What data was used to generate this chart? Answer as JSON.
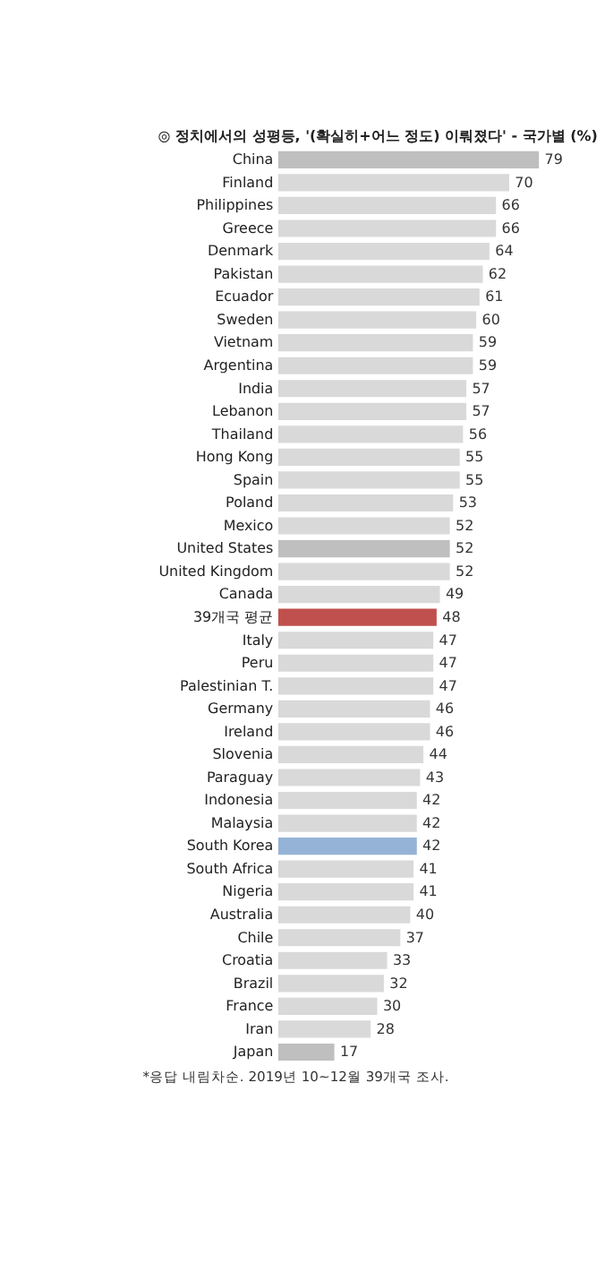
{
  "chart_data": {
    "type": "bar",
    "orientation": "horizontal",
    "title": "◎ 정치에서의 성평등, '(확실히+어느 정도) 이뤄졌다' - 국가별 (%)",
    "categories": [
      "China",
      "Finland",
      "Philippines",
      "Greece",
      "Denmark",
      "Pakistan",
      "Ecuador",
      "Sweden",
      "Vietnam",
      "Argentina",
      "India",
      "Lebanon",
      "Thailand",
      "Hong Kong",
      "Spain",
      "Poland",
      "Mexico",
      "United States",
      "United Kingdom",
      "Canada",
      "39개국 평균",
      "Italy",
      "Peru",
      "Palestinian T.",
      "Germany",
      "Ireland",
      "Slovenia",
      "Paraguay",
      "Indonesia",
      "Malaysia",
      "South Korea",
      "South Africa",
      "Nigeria",
      "Australia",
      "Chile",
      "Croatia",
      "Brazil",
      "France",
      "Iran",
      "Japan"
    ],
    "values": [
      79,
      70,
      66,
      66,
      64,
      62,
      61,
      60,
      59,
      59,
      57,
      57,
      56,
      55,
      55,
      53,
      52,
      52,
      52,
      49,
      48,
      47,
      47,
      47,
      46,
      46,
      44,
      43,
      42,
      42,
      42,
      41,
      41,
      40,
      37,
      33,
      32,
      30,
      28,
      17
    ],
    "colors": [
      "#bfbfbf",
      "#d9d9d9",
      "#d9d9d9",
      "#d9d9d9",
      "#d9d9d9",
      "#d9d9d9",
      "#d9d9d9",
      "#d9d9d9",
      "#d9d9d9",
      "#d9d9d9",
      "#d9d9d9",
      "#d9d9d9",
      "#d9d9d9",
      "#d9d9d9",
      "#d9d9d9",
      "#d9d9d9",
      "#d9d9d9",
      "#bfbfbf",
      "#d9d9d9",
      "#d9d9d9",
      "#c0504d",
      "#d9d9d9",
      "#d9d9d9",
      "#d9d9d9",
      "#d9d9d9",
      "#d9d9d9",
      "#d9d9d9",
      "#d9d9d9",
      "#d9d9d9",
      "#d9d9d9",
      "#95b3d7",
      "#d9d9d9",
      "#d9d9d9",
      "#d9d9d9",
      "#d9d9d9",
      "#d9d9d9",
      "#d9d9d9",
      "#d9d9d9",
      "#d9d9d9",
      "#bfbfbf"
    ],
    "data_labels": true,
    "annotations": [
      "*응답 내림차순. 2019년 10~12월 39개국 조사."
    ]
  }
}
